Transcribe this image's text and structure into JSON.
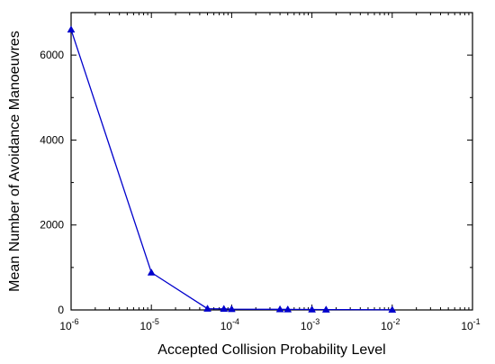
{
  "chart_data": {
    "type": "line",
    "xscale": "log",
    "xlabel": "Accepted Collision Probability Level",
    "ylabel": "Mean Number of Avoidance Manoeuvres",
    "xlim": [
      1e-06,
      0.1
    ],
    "ylim": [
      0,
      7000
    ],
    "x_ticks": [
      1e-06,
      1e-05,
      0.0001,
      0.001,
      0.01,
      0.1
    ],
    "x_tick_labels": [
      {
        "base": "10",
        "exp": "-6"
      },
      {
        "base": "10",
        "exp": "-5"
      },
      {
        "base": "10",
        "exp": "-4"
      },
      {
        "base": "10",
        "exp": "-3"
      },
      {
        "base": "10",
        "exp": "-2"
      },
      {
        "base": "10",
        "exp": "-1"
      }
    ],
    "y_ticks": [
      0,
      2000,
      4000,
      6000
    ],
    "y_tick_labels": [
      "0",
      "2000",
      "4000",
      "6000"
    ],
    "grid": false,
    "series": [
      {
        "color": "#0000cc",
        "marker": "triangle-up",
        "x": [
          1e-06,
          1e-05,
          5e-05,
          8e-05,
          0.0001,
          0.0004,
          0.0005,
          0.001,
          0.0015,
          0.01
        ],
        "y": [
          6600,
          880,
          30,
          25,
          20,
          15,
          12,
          10,
          8,
          5
        ]
      }
    ]
  }
}
